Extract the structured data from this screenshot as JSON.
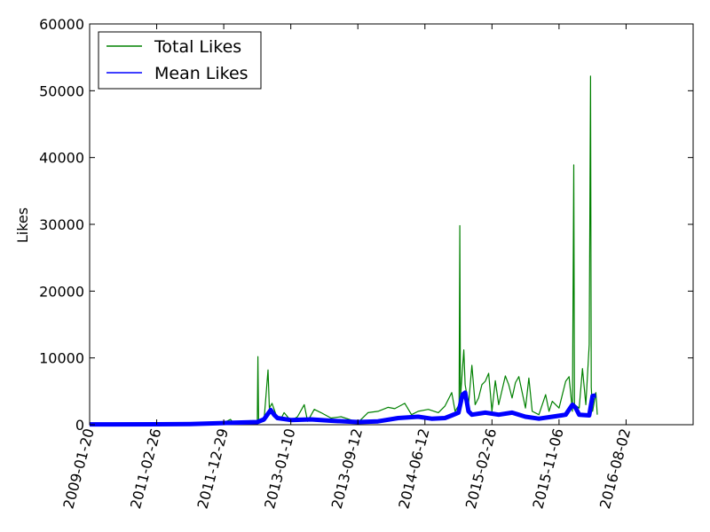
{
  "chart_data": {
    "type": "line",
    "title": "",
    "xlabel": "",
    "ylabel": "Likes",
    "ylim": [
      0,
      60000
    ],
    "y_ticks": [
      "0",
      "10000",
      "20000",
      "30000",
      "40000",
      "50000",
      "60000"
    ],
    "x_ticks": [
      "2009-01-20",
      "2011-02-26",
      "2011-12-29",
      "2013-01-10",
      "2013-09-12",
      "2014-06-12",
      "2015-02-26",
      "2015-11-06",
      "2016-08-02"
    ],
    "xlim_index": [
      0,
      900
    ],
    "x_tick_index": [
      0,
      100,
      200,
      300,
      400,
      500,
      600,
      700,
      800
    ],
    "legend_position": "upper-left",
    "grid": false,
    "series": [
      {
        "name": "Total Likes",
        "color": "#008000",
        "style": "thin-spiky-line",
        "points": [
          [
            0,
            50
          ],
          [
            50,
            80
          ],
          [
            100,
            120
          ],
          [
            150,
            200
          ],
          [
            200,
            300
          ],
          [
            210,
            800
          ],
          [
            215,
            200
          ],
          [
            230,
            500
          ],
          [
            240,
            600
          ],
          [
            250,
            300
          ],
          [
            251,
            10200
          ],
          [
            252,
            300
          ],
          [
            260,
            500
          ],
          [
            266,
            8200
          ],
          [
            268,
            2500
          ],
          [
            272,
            3200
          ],
          [
            278,
            1500
          ],
          [
            285,
            800
          ],
          [
            290,
            1800
          ],
          [
            300,
            600
          ],
          [
            310,
            1200
          ],
          [
            320,
            3000
          ],
          [
            325,
            500
          ],
          [
            335,
            2300
          ],
          [
            345,
            1800
          ],
          [
            360,
            1000
          ],
          [
            375,
            1200
          ],
          [
            390,
            700
          ],
          [
            400,
            300
          ],
          [
            415,
            1800
          ],
          [
            430,
            2000
          ],
          [
            445,
            2600
          ],
          [
            455,
            2400
          ],
          [
            470,
            3200
          ],
          [
            480,
            1500
          ],
          [
            490,
            2000
          ],
          [
            505,
            2300
          ],
          [
            520,
            1800
          ],
          [
            530,
            2800
          ],
          [
            540,
            4800
          ],
          [
            545,
            2000
          ],
          [
            551,
            3000
          ],
          [
            552,
            29800
          ],
          [
            553,
            4000
          ],
          [
            558,
            11200
          ],
          [
            560,
            6000
          ],
          [
            565,
            3000
          ],
          [
            570,
            8900
          ],
          [
            575,
            3000
          ],
          [
            580,
            4000
          ],
          [
            585,
            6000
          ],
          [
            590,
            6500
          ],
          [
            595,
            7700
          ],
          [
            600,
            2000
          ],
          [
            605,
            6600
          ],
          [
            610,
            3000
          ],
          [
            620,
            7300
          ],
          [
            625,
            6000
          ],
          [
            630,
            4000
          ],
          [
            635,
            6300
          ],
          [
            640,
            7200
          ],
          [
            650,
            2500
          ],
          [
            655,
            7000
          ],
          [
            660,
            2000
          ],
          [
            670,
            1500
          ],
          [
            680,
            4500
          ],
          [
            685,
            2000
          ],
          [
            690,
            3500
          ],
          [
            700,
            2500
          ],
          [
            710,
            6500
          ],
          [
            715,
            7200
          ],
          [
            720,
            2000
          ],
          [
            722,
            38900
          ],
          [
            723,
            3000
          ],
          [
            730,
            2500
          ],
          [
            735,
            8400
          ],
          [
            740,
            3000
          ],
          [
            745,
            12000
          ],
          [
            747,
            52200
          ],
          [
            748,
            5600
          ],
          [
            750,
            2000
          ],
          [
            755,
            4800
          ],
          [
            757,
            1500
          ]
        ]
      },
      {
        "name": "Mean Likes",
        "color": "#0000ff",
        "style": "thick-line",
        "points": [
          [
            0,
            50
          ],
          [
            100,
            70
          ],
          [
            150,
            100
          ],
          [
            200,
            250
          ],
          [
            250,
            400
          ],
          [
            260,
            800
          ],
          [
            270,
            2200
          ],
          [
            275,
            1500
          ],
          [
            280,
            1000
          ],
          [
            300,
            700
          ],
          [
            330,
            800
          ],
          [
            360,
            600
          ],
          [
            400,
            400
          ],
          [
            430,
            500
          ],
          [
            460,
            1000
          ],
          [
            490,
            1200
          ],
          [
            510,
            900
          ],
          [
            530,
            1000
          ],
          [
            540,
            1400
          ],
          [
            550,
            1800
          ],
          [
            556,
            4500
          ],
          [
            560,
            4800
          ],
          [
            565,
            2000
          ],
          [
            570,
            1500
          ],
          [
            590,
            1800
          ],
          [
            610,
            1500
          ],
          [
            630,
            1800
          ],
          [
            650,
            1200
          ],
          [
            670,
            900
          ],
          [
            690,
            1200
          ],
          [
            710,
            1500
          ],
          [
            720,
            3000
          ],
          [
            725,
            2500
          ],
          [
            730,
            1500
          ],
          [
            745,
            1400
          ],
          [
            750,
            4300
          ],
          [
            755,
            4400
          ]
        ]
      }
    ]
  }
}
